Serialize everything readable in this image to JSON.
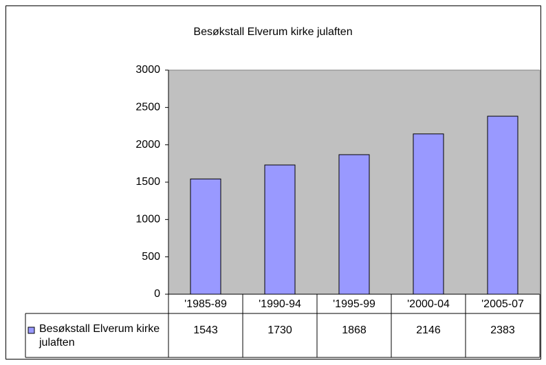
{
  "chart_data": {
    "type": "bar",
    "title": "Besøkstall Elverum kirke julaften",
    "categories": [
      "'1985-89",
      "'1990-94",
      "'1995-99",
      "'2000-04",
      "'2005-07"
    ],
    "series": [
      {
        "name": "Besøkstall Elverum kirke julaften",
        "color": "#9999ff",
        "values": [
          1543,
          1730,
          1868,
          2146,
          2383
        ]
      }
    ],
    "ylim": [
      0,
      3000
    ],
    "yticks": [
      0,
      500,
      1000,
      1500,
      2000,
      2500,
      3000
    ],
    "grid": false
  }
}
